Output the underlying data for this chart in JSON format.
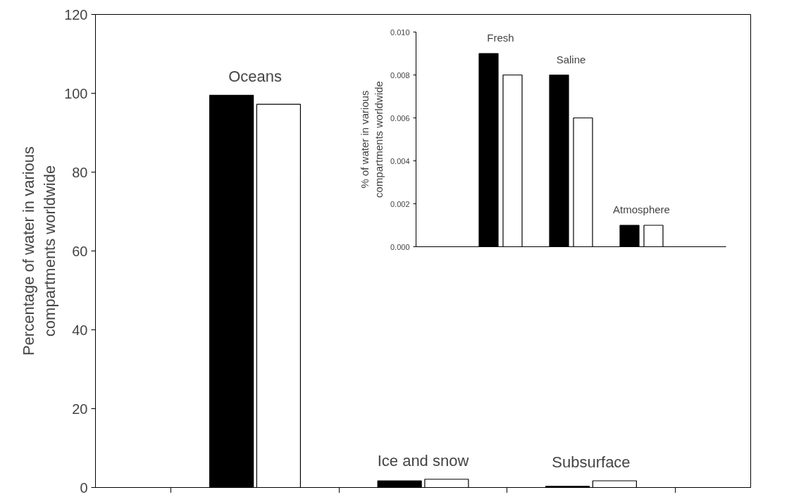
{
  "chart_data": [
    {
      "type": "bar",
      "ylabel": "Percentage of water in various\ncompartments worldwide",
      "categories": [
        null,
        null,
        null
      ],
      "series": [
        {
          "color": "#000000",
          "values": [
            99.5,
            1.7,
            0.3
          ]
        },
        {
          "color": "#ffffff",
          "values": [
            97.2,
            2.1,
            1.7
          ]
        }
      ],
      "annotations": [
        "Oceans",
        "Ice and snow",
        "Subsurface"
      ],
      "ylim": [
        0,
        120
      ],
      "yticks": [
        0,
        20,
        40,
        60,
        80,
        100,
        120
      ],
      "grid": false
    },
    {
      "type": "bar",
      "ylabel": "% of water in various\ncompartments worldwide",
      "categories": [
        null,
        null,
        null
      ],
      "series": [
        {
          "color": "#000000",
          "values": [
            0.009,
            0.008,
            0.001
          ]
        },
        {
          "color": "#ffffff",
          "values": [
            0.008,
            0.006,
            0.001
          ]
        }
      ],
      "annotations": [
        "Fresh",
        "Saline",
        "Atmosphere"
      ],
      "ylim": [
        0,
        0.01
      ],
      "yticks": [
        {
          "value": 0,
          "label": "0.000"
        },
        {
          "value": 0.002,
          "label": "0.002"
        },
        {
          "value": 0.004,
          "label": "0.004"
        },
        {
          "value": 0.006,
          "label": "0.006"
        },
        {
          "value": 0.008,
          "label": "0.008"
        },
        {
          "value": 0.01,
          "label": "0.010"
        }
      ],
      "grid": false
    }
  ]
}
